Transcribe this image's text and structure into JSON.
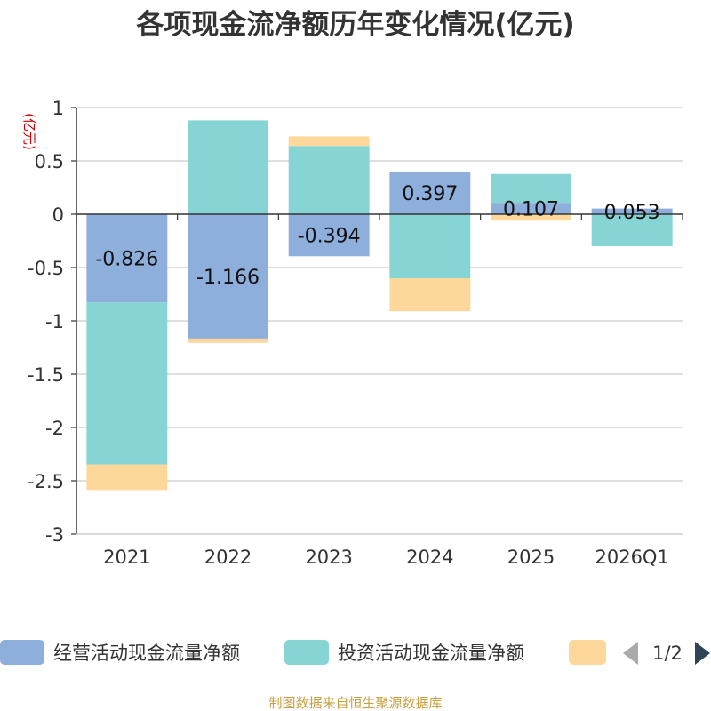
{
  "chart_data": {
    "type": "bar",
    "stacked": true,
    "title": "各项现金流净额历年变化情况(亿元)",
    "ylabel": "(亿元)",
    "xlabel": "",
    "categories": [
      "2021",
      "2022",
      "2023",
      "2024",
      "2025",
      "2026Q1"
    ],
    "ylim": [
      -3,
      1
    ],
    "yticks": [
      1,
      0.5,
      0,
      -0.5,
      -1,
      -1.5,
      -2,
      -2.5,
      -3
    ],
    "ytick_labels": [
      "1",
      "0.5",
      "0",
      "-0.5",
      "-1",
      "-1.5",
      "-2",
      "-2.5",
      "-3"
    ],
    "grid": true,
    "series": [
      {
        "name": "经营活动现金流量净额",
        "color": "#8eaedb",
        "values": [
          -0.826,
          -1.166,
          -0.394,
          0.397,
          0.107,
          0.053
        ]
      },
      {
        "name": "投资活动现金流量净额",
        "color": "#86d4d4",
        "values": [
          -1.52,
          0.88,
          0.64,
          -0.6,
          0.27,
          -0.3
        ]
      },
      {
        "name": "",
        "color": "#fdd89a",
        "values": [
          -0.24,
          -0.04,
          0.09,
          -0.31,
          -0.06,
          0.0
        ]
      }
    ],
    "data_labels": [
      "-0.826",
      "-1.166",
      "-0.394",
      "0.397",
      "0.107",
      "0.053"
    ],
    "legend_position": "bottom"
  },
  "legend": {
    "page_indicator": "1/2"
  },
  "source": "制图数据来自恒生聚源数据库"
}
